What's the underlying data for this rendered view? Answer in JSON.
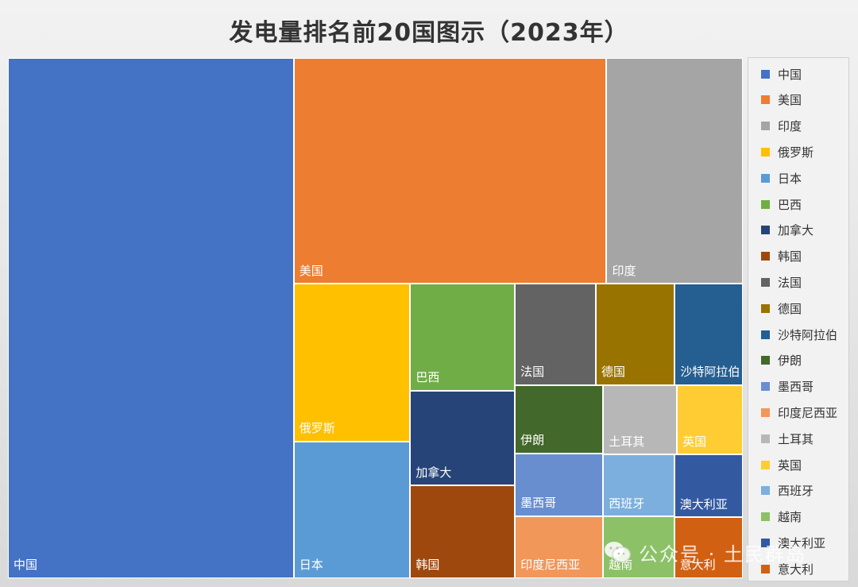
{
  "chart_data": {
    "type": "treemap",
    "title": "发电量排名前20国图示（2023年）",
    "legend_position": "right",
    "items": [
      {
        "name": "中国",
        "value": 9456,
        "color": "#4472C4"
      },
      {
        "name": "美国",
        "value": 4494,
        "color": "#ED7D31"
      },
      {
        "name": "印度",
        "value": 1958,
        "color": "#A5A5A5"
      },
      {
        "name": "俄罗斯",
        "value": 1167,
        "color": "#FFC000"
      },
      {
        "name": "日本",
        "value": 1013,
        "color": "#5B9BD5"
      },
      {
        "name": "巴西",
        "value": 709,
        "color": "#70AD47"
      },
      {
        "name": "加拿大",
        "value": 633,
        "color": "#264478"
      },
      {
        "name": "韩国",
        "value": 617,
        "color": "#9E480E"
      },
      {
        "name": "法国",
        "value": 520,
        "color": "#636363"
      },
      {
        "name": "德国",
        "value": 508,
        "color": "#997300"
      },
      {
        "name": "沙特阿拉伯",
        "value": 437,
        "color": "#255E91"
      },
      {
        "name": "伊朗",
        "value": 385,
        "color": "#43682B"
      },
      {
        "name": "墨西哥",
        "value": 350,
        "color": "#698ED0"
      },
      {
        "name": "印度尼西亚",
        "value": 350,
        "color": "#F1975A"
      },
      {
        "name": "土耳其",
        "value": 327,
        "color": "#B7B7B7"
      },
      {
        "name": "英国",
        "value": 292,
        "color": "#FFCD33"
      },
      {
        "name": "西班牙",
        "value": 280,
        "color": "#7CAFDD"
      },
      {
        "name": "越南",
        "value": 279,
        "color": "#8CC168"
      },
      {
        "name": "澳大利亚",
        "value": 273,
        "color": "#335AA1"
      },
      {
        "name": "意大利",
        "value": 265,
        "color": "#D26012"
      }
    ]
  },
  "watermark": {
    "text": "公众号 · 土民群岛",
    "icon": "wechat-icon"
  }
}
